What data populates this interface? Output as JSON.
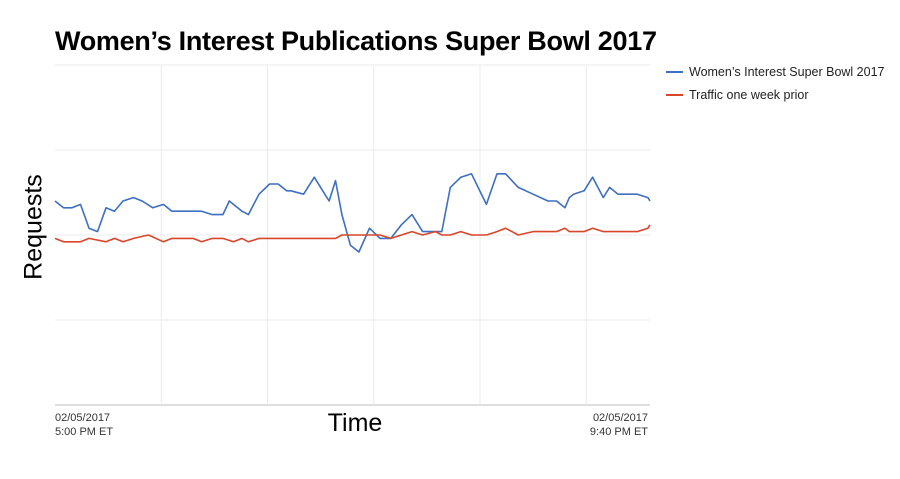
{
  "chart_data": {
    "type": "line",
    "title": "Women’s Interest Publications Super Bowl 2017",
    "xlabel": "Time",
    "ylabel": "Requests",
    "x_tick_labels": [
      {
        "line1": "02/05/2017",
        "line2": "5:00 PM ET"
      },
      {
        "line1": "02/05/2017",
        "line2": "9:40 PM ET"
      }
    ],
    "x_range": [
      0,
      280
    ],
    "x_unit": "minutes after 5:00 PM ET",
    "ylim": [
      0,
      100
    ],
    "grid": true,
    "legend_position": "top-right",
    "series": [
      {
        "name": "Women’s Interest Super Bowl 2017",
        "color": "#3f6fc0",
        "x": [
          0,
          4,
          8,
          12,
          16,
          20,
          24,
          28,
          32,
          37,
          41,
          46,
          51,
          55,
          59,
          65,
          69,
          74,
          79,
          82,
          84,
          88,
          91,
          96,
          101,
          105,
          109,
          111,
          117,
          122,
          125,
          129,
          132,
          135,
          139,
          143,
          148,
          153,
          158,
          163,
          168,
          173,
          179,
          182,
          186,
          191,
          196,
          203,
          208,
          212,
          218,
          225,
          232,
          236,
          240,
          242,
          244,
          249,
          253,
          258,
          261,
          265,
          269,
          274,
          279,
          280
        ],
        "y": [
          60,
          58,
          58,
          59,
          52,
          51,
          58,
          57,
          60,
          61,
          60,
          58,
          59,
          57,
          57,
          57,
          57,
          56,
          56,
          60,
          59,
          57,
          56,
          62,
          65,
          65,
          63,
          63,
          62,
          67,
          64,
          60,
          66,
          56,
          47,
          45,
          52,
          49,
          49,
          53,
          56,
          51,
          51,
          51,
          64,
          67,
          68,
          59,
          68,
          68,
          64,
          62,
          60,
          60,
          58,
          61,
          62,
          63,
          67,
          61,
          64,
          62,
          62,
          62,
          61,
          60
        ],
        "y_series_extra_note": ""
      },
      {
        "name": "Traffic one week prior",
        "color": "#d9462a",
        "x": [
          0,
          4,
          12,
          16,
          24,
          28,
          32,
          37,
          44,
          51,
          55,
          65,
          69,
          74,
          79,
          84,
          88,
          91,
          96,
          101,
          105,
          109,
          111,
          117,
          122,
          125,
          129,
          132,
          135,
          139,
          143,
          148,
          153,
          158,
          163,
          168,
          173,
          179,
          182,
          186,
          191,
          196,
          203,
          208,
          212,
          218,
          225,
          232,
          236,
          240,
          242,
          244,
          249,
          253,
          258,
          261,
          265,
          269,
          274,
          279,
          280
        ],
        "y": [
          49,
          48,
          48,
          49,
          48,
          49,
          48,
          49,
          50,
          48,
          49,
          49,
          48,
          49,
          49,
          48,
          49,
          48,
          49,
          49,
          49,
          49,
          49,
          49,
          49,
          49,
          49,
          49,
          50,
          50,
          50,
          50,
          50,
          49,
          50,
          51,
          50,
          51,
          50,
          50,
          51,
          50,
          50,
          51,
          52,
          50,
          51,
          51,
          51,
          52,
          51,
          51,
          51,
          52,
          51,
          51,
          51,
          51,
          51,
          52,
          53
        ],
        "y_series_extra_note": ""
      }
    ]
  }
}
